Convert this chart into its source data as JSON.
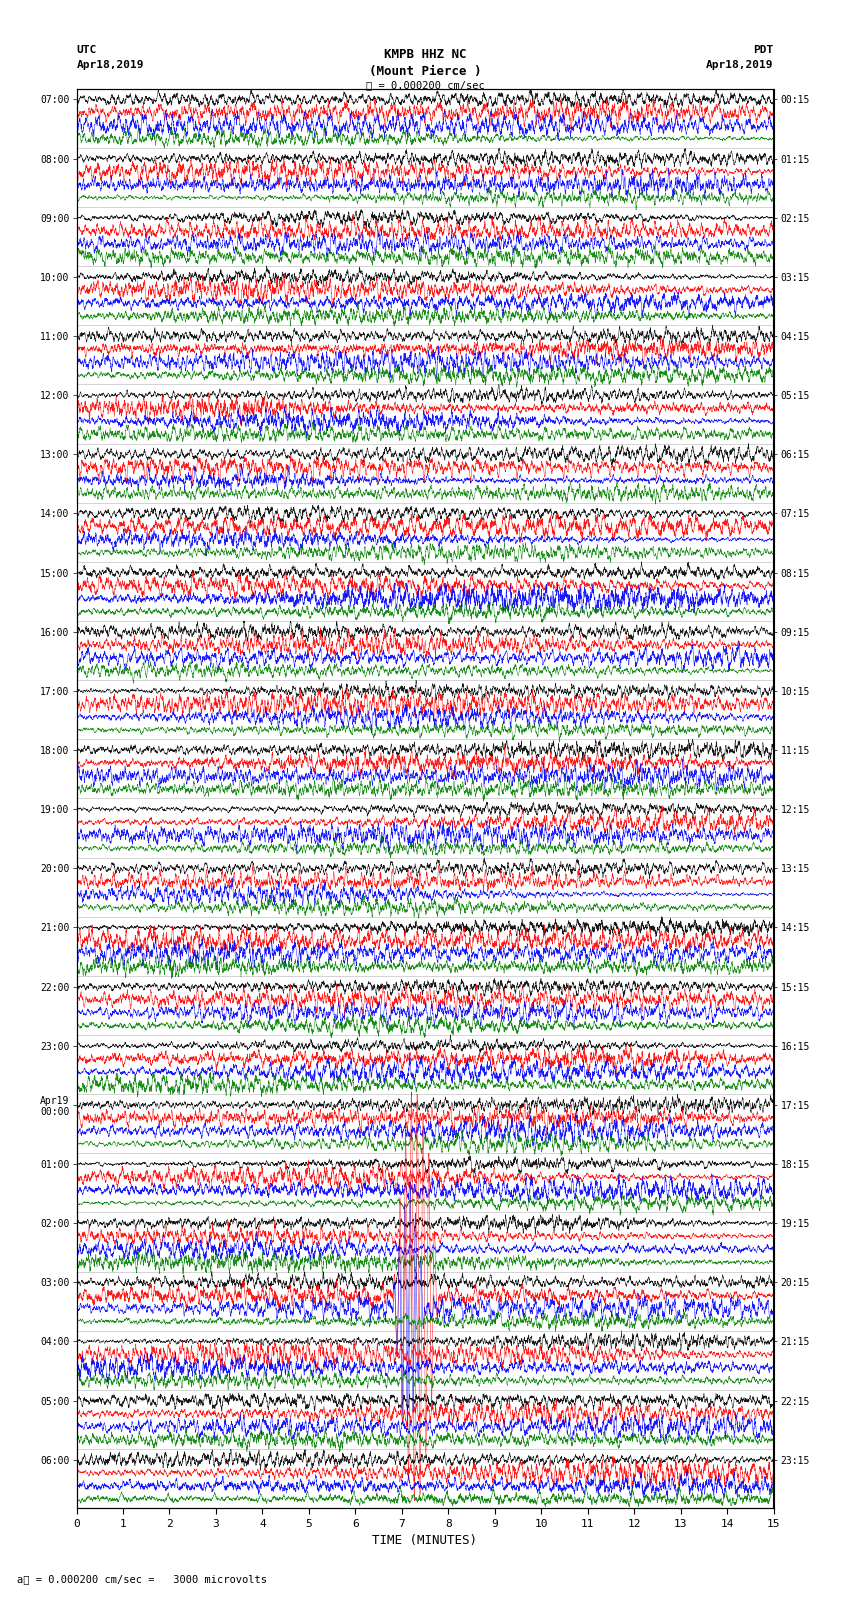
{
  "title_line1": "KMPB HHZ NC",
  "title_line2": "(Mount Pierce )",
  "scale_label": "= 0.000200 cm/sec",
  "left_label_line1": "UTC",
  "left_label_line2": "Apr18,2019",
  "right_label_line1": "PDT",
  "right_label_line2": "Apr18,2019",
  "bottom_note": "= 0.000200 cm/sec =   3000 microvolts",
  "xlabel": "TIME (MINUTES)",
  "utc_times_left": [
    "07:00",
    "08:00",
    "09:00",
    "10:00",
    "11:00",
    "12:00",
    "13:00",
    "14:00",
    "15:00",
    "16:00",
    "17:00",
    "18:00",
    "19:00",
    "20:00",
    "21:00",
    "22:00",
    "23:00",
    "Apr19\n00:00",
    "01:00",
    "02:00",
    "03:00",
    "04:00",
    "05:00",
    "06:00"
  ],
  "pdt_times_right": [
    "00:15",
    "01:15",
    "02:15",
    "03:15",
    "04:15",
    "05:15",
    "06:15",
    "07:15",
    "08:15",
    "09:15",
    "10:15",
    "11:15",
    "12:15",
    "13:15",
    "14:15",
    "15:15",
    "16:15",
    "17:15",
    "18:15",
    "19:15",
    "20:15",
    "21:15",
    "22:15",
    "23:15"
  ],
  "n_rows": 24,
  "n_traces_per_row": 4,
  "colors": [
    "black",
    "red",
    "blue",
    "green"
  ],
  "bg_color": "white",
  "trace_duration_minutes": 15,
  "fig_width": 8.5,
  "fig_height": 16.13,
  "dpi": 100
}
